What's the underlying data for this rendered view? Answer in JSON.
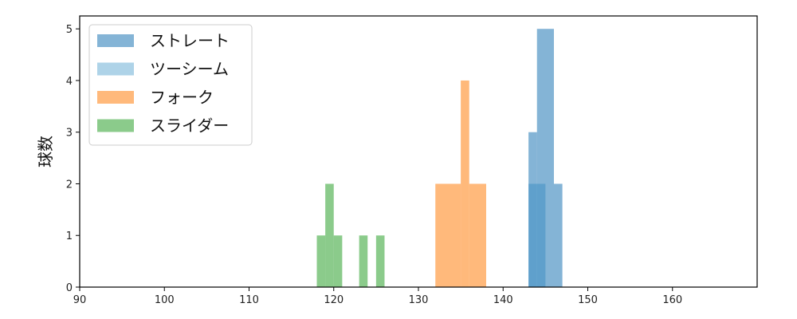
{
  "chart_data": {
    "type": "histogram",
    "title": "",
    "xlabel": "",
    "ylabel": "球数",
    "xlim": [
      90,
      170
    ],
    "ylim": [
      0,
      5.25
    ],
    "xticks": [
      90,
      100,
      110,
      120,
      130,
      140,
      150,
      160
    ],
    "yticks": [
      0,
      1,
      2,
      3,
      4,
      5
    ],
    "grid": false,
    "legend": "top-left",
    "series": [
      {
        "name": "スライダー",
        "color": "#2ca02c",
        "bins": [
          {
            "x0": 118.0,
            "x1": 119.0,
            "count": 1
          },
          {
            "x0": 119.0,
            "x1": 120.0,
            "count": 2
          },
          {
            "x0": 120.0,
            "x1": 121.0,
            "count": 1
          },
          {
            "x0": 123.0,
            "x1": 124.0,
            "count": 1
          },
          {
            "x0": 125.0,
            "x1": 126.0,
            "count": 1
          }
        ]
      },
      {
        "name": "フォーク",
        "color": "#ff7f0e",
        "bins": [
          {
            "x0": 132.0,
            "x1": 135.0,
            "count": 2
          },
          {
            "x0": 135.0,
            "x1": 136.0,
            "count": 4
          },
          {
            "x0": 136.0,
            "x1": 138.0,
            "count": 2
          }
        ]
      },
      {
        "name": "ツーシーム",
        "color": "#6baed6",
        "bins": [
          {
            "x0": 143.0,
            "x1": 145.0,
            "count": 2
          }
        ]
      },
      {
        "name": "ストレート",
        "color": "#1f77b4",
        "bins": [
          {
            "x0": 143.0,
            "x1": 144.0,
            "count": 3
          },
          {
            "x0": 144.0,
            "x1": 146.0,
            "count": 5
          },
          {
            "x0": 146.0,
            "x1": 147.0,
            "count": 2
          }
        ]
      }
    ],
    "legend_order": [
      "ストレート",
      "ツーシーム",
      "フォーク",
      "スライダー"
    ]
  }
}
